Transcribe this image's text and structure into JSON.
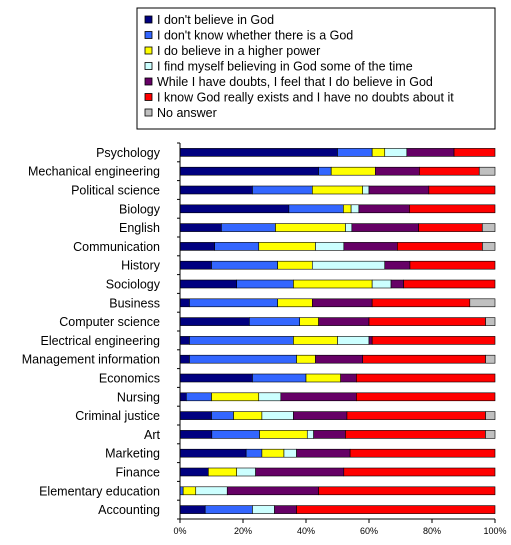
{
  "chart_data": {
    "type": "bar",
    "orientation": "horizontal",
    "stacked": "percent",
    "title": "",
    "xlabel": "",
    "ylabel": "",
    "xlim": [
      0,
      100
    ],
    "xticks": [
      "0%",
      "20%",
      "40%",
      "60%",
      "80%",
      "100%"
    ],
    "grid": false,
    "legend_position": "top",
    "categories": [
      "Psychology",
      "Mechanical engineering",
      "Political science",
      "Biology",
      "English",
      "Communication",
      "History",
      "Sociology",
      "Business",
      "Computer science",
      "Electrical engineering",
      "Management information",
      "Economics",
      "Nursing",
      "Criminal justice",
      "Art",
      "Marketing",
      "Finance",
      "Elementary education",
      "Accounting"
    ],
    "series": [
      {
        "name": "I don't believe in God",
        "color": "#000080",
        "values": [
          50,
          44,
          23,
          28,
          13,
          11,
          10,
          18,
          3,
          22,
          3,
          3,
          23,
          2,
          10,
          10,
          21,
          9,
          0,
          8
        ]
      },
      {
        "name": "I don't know whether there is a God",
        "color": "#3366ff",
        "values": [
          11,
          4,
          19,
          14,
          17,
          14,
          21,
          18,
          28,
          16,
          33,
          34,
          17,
          8,
          7,
          15,
          5,
          0,
          1,
          15
        ]
      },
      {
        "name": "I do believe in a higher power",
        "color": "#ffff00",
        "values": [
          4,
          14,
          16,
          2,
          22,
          18,
          11,
          25,
          11,
          6,
          14,
          6,
          11,
          15,
          9,
          15,
          7,
          9,
          4,
          0
        ]
      },
      {
        "name": "I find myself believing in God some of the time",
        "color": "#ccffff",
        "values": [
          7,
          0,
          2,
          2,
          2,
          9,
          23,
          6,
          0,
          0,
          10,
          0,
          0,
          7,
          10,
          2,
          4,
          6,
          10,
          7
        ]
      },
      {
        "name": "While I have doubts, I feel that I do believe in God",
        "color": "#660066",
        "values": [
          15,
          14,
          19,
          13,
          21,
          17,
          8,
          4,
          19,
          16,
          1,
          15,
          5,
          24,
          17,
          10,
          17,
          28,
          29,
          7
        ]
      },
      {
        "name": "I know God really exists and I have no doubts about it",
        "color": "#ff0000",
        "values": [
          13,
          19,
          21,
          22,
          20,
          27,
          27,
          29,
          31,
          37,
          39,
          39,
          44,
          44,
          44,
          44,
          46,
          48,
          56,
          63
        ]
      },
      {
        "name": "No answer",
        "color": "#c0c0c0",
        "values": [
          0,
          5,
          0,
          0,
          4,
          4,
          0,
          0,
          8,
          3,
          0,
          3,
          0,
          0,
          3,
          3,
          0,
          0,
          0,
          0
        ]
      }
    ]
  }
}
